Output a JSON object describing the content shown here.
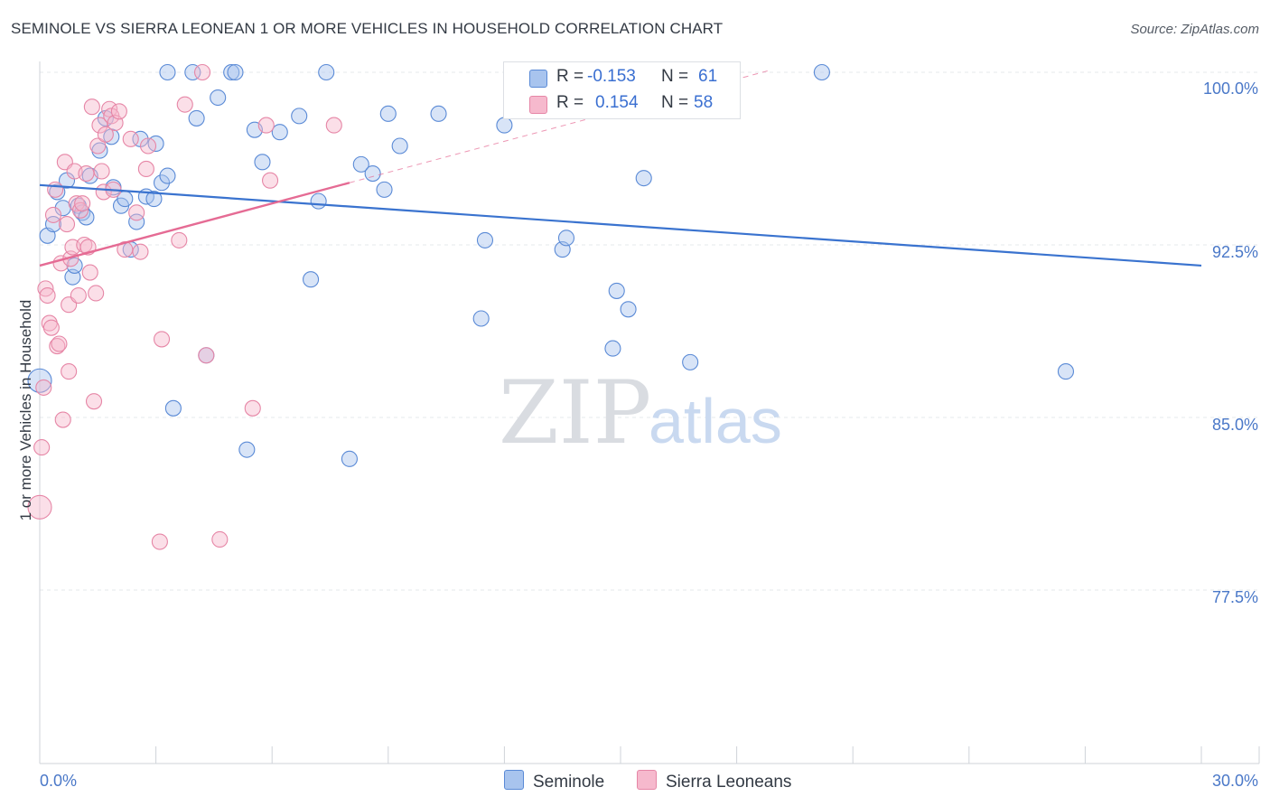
{
  "chart_data": {
    "type": "scatter",
    "title": "SEMINOLE VS SIERRA LEONEAN 1 OR MORE VEHICLES IN HOUSEHOLD CORRELATION CHART",
    "source": "Source: ZipAtlas.com",
    "ylabel": "1 or more Vehicles in Household",
    "xlabel": "",
    "xlim": [
      0,
      30
    ],
    "ylim": [
      70,
      101
    ],
    "x_ticks": [
      "0.0%",
      "30.0%"
    ],
    "y_ticks": [
      {
        "value": 100,
        "label": "100.0%"
      },
      {
        "value": 92.5,
        "label": "92.5%"
      },
      {
        "value": 85,
        "label": "85.0%"
      },
      {
        "value": 77.5,
        "label": "77.5%"
      }
    ],
    "watermark": {
      "part1": "ZIP",
      "part2": "atlas"
    },
    "legend": {
      "r_label": "R =",
      "n_label": "N =",
      "entries": [
        {
          "name": "Seminole",
          "r": "-0.153",
          "n": "61"
        },
        {
          "name": "Sierra Leoneans",
          "r": "0.154",
          "n": "58"
        }
      ]
    },
    "colors": {
      "seminole_fill": "#a8c4ee",
      "seminole_stroke": "#5a8ad6",
      "seminole_line": "#3a73cf",
      "sierra_fill": "#f6b9cd",
      "sierra_stroke": "#e686a6",
      "sierra_line": "#e56b94",
      "axis_text": "#4a78c8"
    },
    "series": [
      {
        "name": "Seminole",
        "trend": {
          "x": [
            0,
            30
          ],
          "y": [
            95.1,
            91.6
          ]
        },
        "points": [
          [
            0.0,
            86.6
          ],
          [
            0.2,
            92.9
          ],
          [
            0.35,
            93.4
          ],
          [
            0.45,
            94.8
          ],
          [
            0.6,
            94.1
          ],
          [
            0.7,
            95.3
          ],
          [
            0.85,
            91.1
          ],
          [
            0.9,
            91.6
          ],
          [
            1.0,
            94.2
          ],
          [
            1.1,
            93.9
          ],
          [
            1.2,
            93.7
          ],
          [
            1.3,
            95.5
          ],
          [
            1.55,
            96.6
          ],
          [
            1.7,
            98.0
          ],
          [
            1.85,
            97.2
          ],
          [
            1.9,
            95.0
          ],
          [
            2.1,
            94.2
          ],
          [
            2.2,
            94.5
          ],
          [
            2.35,
            92.3
          ],
          [
            2.5,
            93.5
          ],
          [
            2.6,
            97.1
          ],
          [
            2.75,
            94.6
          ],
          [
            2.95,
            94.5
          ],
          [
            3.0,
            96.9
          ],
          [
            3.15,
            95.2
          ],
          [
            3.3,
            95.5
          ],
          [
            3.3,
            100.0
          ],
          [
            3.45,
            85.4
          ],
          [
            3.95,
            100.0
          ],
          [
            4.05,
            98.0
          ],
          [
            4.3,
            87.7
          ],
          [
            4.6,
            98.9
          ],
          [
            4.95,
            100.0
          ],
          [
            5.05,
            100.0
          ],
          [
            5.35,
            83.6
          ],
          [
            5.55,
            97.5
          ],
          [
            5.75,
            96.1
          ],
          [
            6.2,
            97.4
          ],
          [
            6.7,
            98.1
          ],
          [
            7.0,
            91.0
          ],
          [
            7.2,
            94.4
          ],
          [
            7.4,
            100.0
          ],
          [
            8.3,
            96.0
          ],
          [
            8.0,
            83.2
          ],
          [
            8.6,
            95.6
          ],
          [
            8.9,
            94.9
          ],
          [
            9.0,
            98.2
          ],
          [
            9.3,
            96.8
          ],
          [
            10.3,
            98.2
          ],
          [
            11.4,
            89.3
          ],
          [
            11.5,
            92.7
          ],
          [
            12.0,
            97.7
          ],
          [
            13.5,
            92.3
          ],
          [
            13.6,
            92.8
          ],
          [
            14.8,
            88.0
          ],
          [
            14.9,
            90.5
          ],
          [
            15.2,
            89.7
          ],
          [
            15.6,
            95.4
          ],
          [
            16.8,
            87.4
          ],
          [
            20.2,
            100.0
          ],
          [
            26.5,
            87.0
          ]
        ]
      },
      {
        "name": "Sierra Leoneans",
        "trend": {
          "x": [
            0,
            8
          ],
          "y": [
            91.6,
            95.2
          ]
        },
        "points": [
          [
            0.0,
            81.1
          ],
          [
            0.05,
            83.7
          ],
          [
            0.1,
            86.3
          ],
          [
            0.15,
            90.6
          ],
          [
            0.2,
            90.3
          ],
          [
            0.25,
            89.1
          ],
          [
            0.3,
            88.9
          ],
          [
            0.35,
            93.8
          ],
          [
            0.4,
            94.9
          ],
          [
            0.45,
            88.1
          ],
          [
            0.5,
            88.2
          ],
          [
            0.55,
            91.7
          ],
          [
            0.6,
            84.9
          ],
          [
            0.65,
            96.1
          ],
          [
            0.7,
            93.4
          ],
          [
            0.75,
            87.0
          ],
          [
            0.75,
            89.9
          ],
          [
            0.8,
            91.9
          ],
          [
            0.85,
            92.4
          ],
          [
            0.9,
            95.7
          ],
          [
            0.95,
            94.3
          ],
          [
            1.0,
            90.3
          ],
          [
            1.05,
            94.0
          ],
          [
            1.1,
            94.3
          ],
          [
            1.15,
            92.5
          ],
          [
            1.2,
            95.6
          ],
          [
            1.25,
            92.4
          ],
          [
            1.3,
            91.3
          ],
          [
            1.35,
            98.5
          ],
          [
            1.4,
            85.7
          ],
          [
            1.45,
            90.4
          ],
          [
            1.5,
            96.8
          ],
          [
            1.55,
            97.7
          ],
          [
            1.6,
            95.7
          ],
          [
            1.65,
            94.8
          ],
          [
            1.7,
            97.3
          ],
          [
            1.8,
            98.4
          ],
          [
            1.85,
            98.1
          ],
          [
            1.9,
            94.9
          ],
          [
            1.95,
            97.8
          ],
          [
            2.05,
            98.3
          ],
          [
            2.2,
            92.3
          ],
          [
            2.35,
            97.1
          ],
          [
            2.5,
            93.9
          ],
          [
            2.6,
            92.2
          ],
          [
            2.75,
            95.8
          ],
          [
            2.8,
            96.8
          ],
          [
            3.1,
            79.6
          ],
          [
            3.15,
            88.4
          ],
          [
            3.6,
            92.7
          ],
          [
            3.75,
            98.6
          ],
          [
            4.2,
            100.0
          ],
          [
            4.3,
            87.7
          ],
          [
            4.65,
            79.7
          ],
          [
            5.5,
            85.4
          ],
          [
            5.85,
            97.7
          ],
          [
            5.95,
            95.3
          ],
          [
            7.6,
            97.7
          ]
        ]
      }
    ]
  }
}
